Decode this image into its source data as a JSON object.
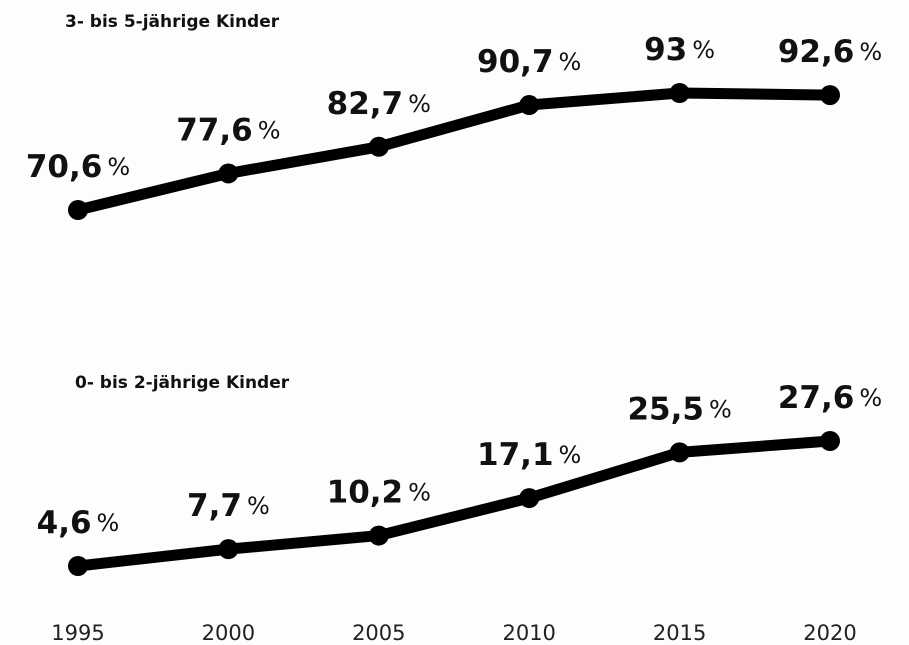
{
  "chart_data": {
    "type": "line",
    "x": [
      1995,
      2000,
      2005,
      2010,
      2015,
      2020
    ],
    "unit": "%",
    "color": "#000000",
    "series": [
      {
        "name": "3- bis 5-jährige Kinder",
        "values": [
          70.6,
          77.6,
          82.7,
          90.7,
          93,
          92.6
        ],
        "value_labels": [
          "70,6",
          "77,6",
          "82,7",
          "90,7",
          "93",
          "92,6"
        ]
      },
      {
        "name": "0- bis 2-jährige Kinder",
        "values": [
          4.6,
          7.7,
          10.2,
          17.1,
          25.5,
          27.6
        ],
        "value_labels": [
          "4,6",
          "7,7",
          "10,2",
          "17,1",
          "25,5",
          "27,6"
        ]
      }
    ]
  }
}
